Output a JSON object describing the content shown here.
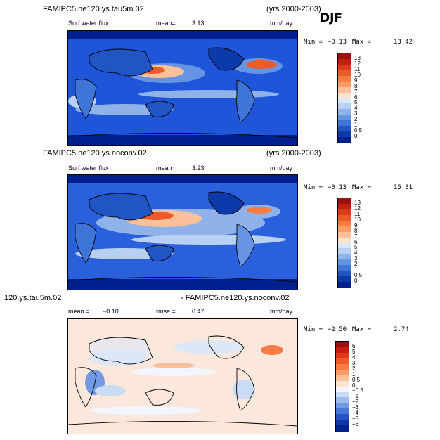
{
  "season": "DJF",
  "panels": [
    {
      "case": "FAMIPC5.ne120.ys.tau5m.02",
      "years": "(yrs 2000-2003)",
      "variable": "Surf water flux",
      "stat1_label": "mean=",
      "stat1_value": "3.13",
      "units": "mm/day",
      "min_label": "Min =",
      "min_value": "−0.13",
      "max_label": "Max =",
      "max_value": "13.42",
      "levels": [
        "13",
        "12",
        "11",
        "10",
        "9",
        "8",
        "7",
        "6",
        "5",
        "4",
        "3",
        "2",
        "1",
        "0.5",
        "0"
      ],
      "colors": [
        "#9c0f0f",
        "#c51d10",
        "#dd3a1a",
        "#ee5a2a",
        "#f57c43",
        "#f89c68",
        "#fac09a",
        "#fde4d2",
        "#dce8f8",
        "#b8d0f2",
        "#8fb2ea",
        "#6694e2",
        "#3f74d8",
        "#2155c6",
        "#0c3aab",
        "#001f8e"
      ],
      "map_base": "#1f55d8"
    },
    {
      "case": "FAMIPC5.ne120.ys.noconv.02",
      "years": "(yrs 2000-2003)",
      "variable": "Surf water flux",
      "stat1_label": "mean=",
      "stat1_value": "3.23",
      "units": "mm/day",
      "min_label": "Min =",
      "min_value": "−0.13",
      "max_label": "Max =",
      "max_value": "15.31",
      "levels": [
        "13",
        "12",
        "11",
        "10",
        "9",
        "8",
        "7",
        "6",
        "5",
        "4",
        "3",
        "2",
        "1",
        "0.5",
        "0"
      ],
      "colors": [
        "#9c0f0f",
        "#c51d10",
        "#dd3a1a",
        "#ee5a2a",
        "#f57c43",
        "#f89c68",
        "#fac09a",
        "#fde4d2",
        "#dce8f8",
        "#b8d0f2",
        "#8fb2ea",
        "#6694e2",
        "#3f74d8",
        "#2155c6",
        "#0c3aab",
        "#001f8e"
      ],
      "map_base": "#2a60dc"
    },
    {
      "case": "120.ys.tau5m.02",
      "case2": "- FAMIPC5.ne120.ys.noconv.02",
      "stat1_label": "mean =",
      "stat1_value": "−0.10",
      "stat2_label": "rmse =",
      "stat2_value": "0.47",
      "units": "mm/day",
      "min_label": "Min =",
      "min_value": "−2.50",
      "max_label": "Max =",
      "max_value": "2.74",
      "levels": [
        "6",
        "5",
        "4",
        "3",
        "2",
        "1",
        "0.5",
        "0",
        "−0.5",
        "−1",
        "−2",
        "−3",
        "−4",
        "−5",
        "−6"
      ],
      "colors": [
        "#9c0f0f",
        "#c51d10",
        "#dd3a1a",
        "#ee5a2a",
        "#f57c43",
        "#f89c68",
        "#fac09a",
        "#fde4d2",
        "#f4f6ff",
        "#c9dbf5",
        "#9fbdec",
        "#7299e2",
        "#4a77d6",
        "#2952c2",
        "#0f35a6",
        "#00208c"
      ],
      "map_base": "#fbe7dc"
    }
  ]
}
